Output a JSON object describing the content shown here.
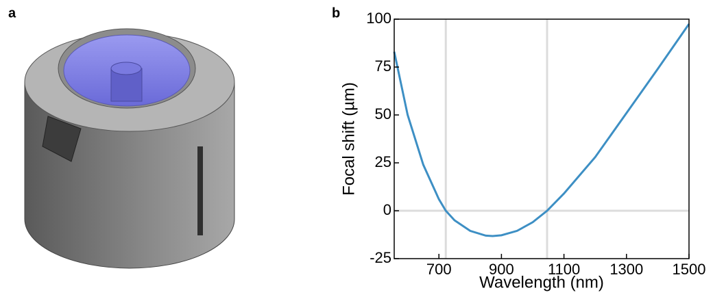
{
  "panel_labels": [
    "a",
    "b"
  ],
  "chart_data": {
    "type": "line",
    "x_label": "Wavelength (nm)",
    "y_label": "Focal shift (µm)",
    "x": [
      557,
      600,
      650,
      700,
      722,
      750,
      800,
      850,
      872,
      900,
      950,
      1000,
      1046,
      1100,
      1200,
      1300,
      1400,
      1500
    ],
    "series": [
      {
        "color": "#3d8fc4",
        "values": [
          83,
          50,
          24,
          6,
          0,
          -5,
          -10.5,
          -13,
          -13.2,
          -12.8,
          -10.5,
          -6,
          0,
          9,
          28,
          51,
          74,
          97.5
        ]
      }
    ],
    "xlim": [
      557,
      1500
    ],
    "xticks": [
      700,
      900,
      1100,
      1300,
      1500
    ],
    "ylim": [
      -25,
      100
    ],
    "yticks": [
      -25,
      0,
      25,
      50,
      75,
      100
    ],
    "vlines": [
      722,
      1046
    ],
    "hlines": [
      0
    ],
    "guide_color": "#dcdcdc"
  }
}
